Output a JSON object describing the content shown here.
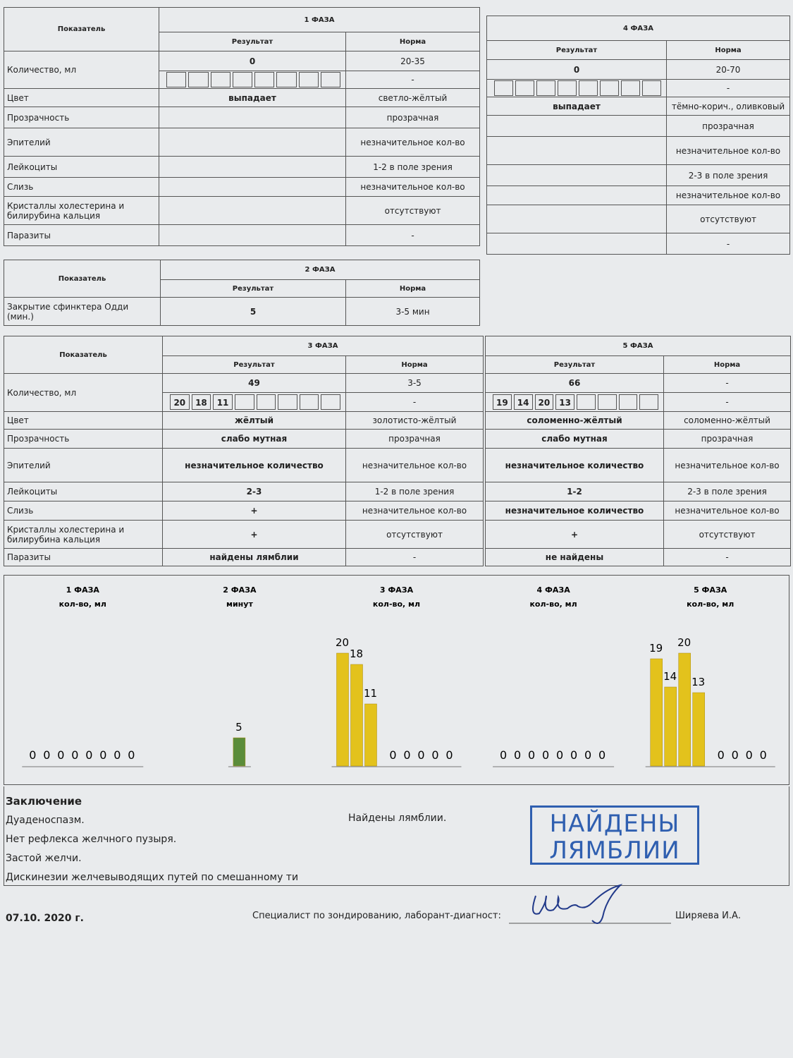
{
  "phase1": {
    "label_header": "Показатель",
    "title": "1 ФАЗА",
    "result_header": "Результат",
    "norm_header": "Норма",
    "quantity": {
      "label": "Количество, мл",
      "result": 0,
      "norm": "20-35",
      "portions_norm": "-"
    },
    "rows": [
      {
        "label": "Цвет",
        "result": "выпадает",
        "norm": "светло-жёлтый"
      },
      {
        "label": "Прозрачность",
        "norm": "прозрачная"
      },
      {
        "label": "Эпителий",
        "norm": "незначительное кол-во"
      },
      {
        "label": "Лейкоциты",
        "norm": "1-2 в поле зрения"
      },
      {
        "label": "Слизь",
        "norm": "незначительное кол-во"
      },
      {
        "label": "Кристаллы холестерина и билирубина кальция",
        "norm": "отсутствуют"
      },
      {
        "label": "Паразиты",
        "norm": "-"
      }
    ]
  },
  "phase4": {
    "title": "4 ФАЗА",
    "result_header": "Результат",
    "norm_header": "Норма",
    "quantity": {
      "result": 0,
      "norm": "20-70",
      "portions_norm": "-"
    },
    "rows": [
      {
        "result": "выпадает",
        "norm": "тёмно-корич., оливковый"
      },
      {
        "norm": "прозрачная"
      },
      {
        "norm": "незначительное кол-во"
      },
      {
        "norm": "2-3 в поле зрения"
      },
      {
        "norm": "незначительное кол-во"
      },
      {
        "norm": "отсутствуют"
      },
      {
        "norm": "-"
      }
    ]
  },
  "phase2": {
    "label_header": "Показатель",
    "title": "2 ФАЗА",
    "result_header": "Результат",
    "norm_header": "Норма",
    "rows": [
      {
        "label": "Закрытие сфинктера Одди (мин.)",
        "result": 5,
        "norm": "3-5 мин"
      }
    ]
  },
  "phase3": {
    "label_header": "Показатель",
    "title": "3 ФАЗА",
    "result_header": "Результат",
    "norm_header": "Норма",
    "quantity": {
      "label": "Количество, мл",
      "result": 49,
      "norm": "3-5",
      "portions": [
        20,
        18,
        11
      ],
      "portions_norm": "-"
    },
    "rows": [
      {
        "label": "Цвет",
        "result": "жёлтый",
        "norm": "золотисто-жёлтый"
      },
      {
        "label": "Прозрачность",
        "result": "слабо мутная",
        "norm": "прозрачная"
      },
      {
        "label": "Эпителий",
        "result": "незначительное количество",
        "norm": "незначительное кол-во"
      },
      {
        "label": "Лейкоциты",
        "result": "2-3",
        "norm": "1-2 в поле зрения"
      },
      {
        "label": "Слизь",
        "result": "+",
        "norm": "незначительное кол-во"
      },
      {
        "label": "Кристаллы холестерина и билирубина кальция",
        "result": "+",
        "norm": "отсутствуют"
      },
      {
        "label": "Паразиты",
        "result": "найдены лямблии",
        "norm": "-"
      }
    ]
  },
  "phase5": {
    "title": "5 ФАЗА",
    "result_header": "Результат",
    "norm_header": "Норма",
    "quantity": {
      "result": 66,
      "norm": "-",
      "portions": [
        19,
        14,
        20,
        13
      ],
      "portions_norm": "-"
    },
    "rows": [
      {
        "result": "соломенно-жёлтый",
        "norm": "соломенно-жёлтый"
      },
      {
        "result": "слабо мутная",
        "norm": "прозрачная"
      },
      {
        "result": "незначительное количество",
        "norm": "незначительное кол-во"
      },
      {
        "result": "1-2",
        "norm": "2-3 в поле зрения"
      },
      {
        "result": "незначительное количество",
        "norm": "незначительное кол-во"
      },
      {
        "result": "+",
        "norm": "отсутствуют"
      },
      {
        "result": "не найдены",
        "norm": "-"
      }
    ]
  },
  "charts": [
    {
      "title": "1 ФАЗА",
      "unit": "кол-во, мл",
      "color": "#e3c21c",
      "values": [
        0,
        0,
        0,
        0,
        0,
        0,
        0,
        0
      ]
    },
    {
      "title": "2 ФАЗА",
      "unit": "минут",
      "color": "#5b8c3a",
      "values": [
        5
      ]
    },
    {
      "title": "3 ФАЗА",
      "unit": "кол-во, мл",
      "color": "#e3c21c",
      "values": [
        20,
        18,
        11,
        0,
        0,
        0,
        0,
        0
      ]
    },
    {
      "title": "4 ФАЗА",
      "unit": "кол-во, мл",
      "color": "#e3c21c",
      "values": [
        0,
        0,
        0,
        0,
        0,
        0,
        0,
        0
      ]
    },
    {
      "title": "5 ФАЗА",
      "unit": "кол-во, мл",
      "color": "#e3c21c",
      "values": [
        19,
        14,
        20,
        13,
        0,
        0,
        0,
        0
      ]
    }
  ],
  "conclusion": {
    "title": "Заключение",
    "lines": [
      "Дуаденоспазм.",
      "Нет рефлекса желчного пузыря.",
      "Застой желчи.",
      "Дискинезии желчевыводящих путей по смешанному ти"
    ],
    "note": "Найдены лямблии."
  },
  "stamp": {
    "lines": [
      "НАЙДЕНЫ",
      "ЛЯМБЛИИ"
    ]
  },
  "footer": {
    "date": "07.10. 2020 г.",
    "specialist": "Специалист по зондированию, лаборант-диагност:",
    "name": "Ширяева И.А."
  }
}
